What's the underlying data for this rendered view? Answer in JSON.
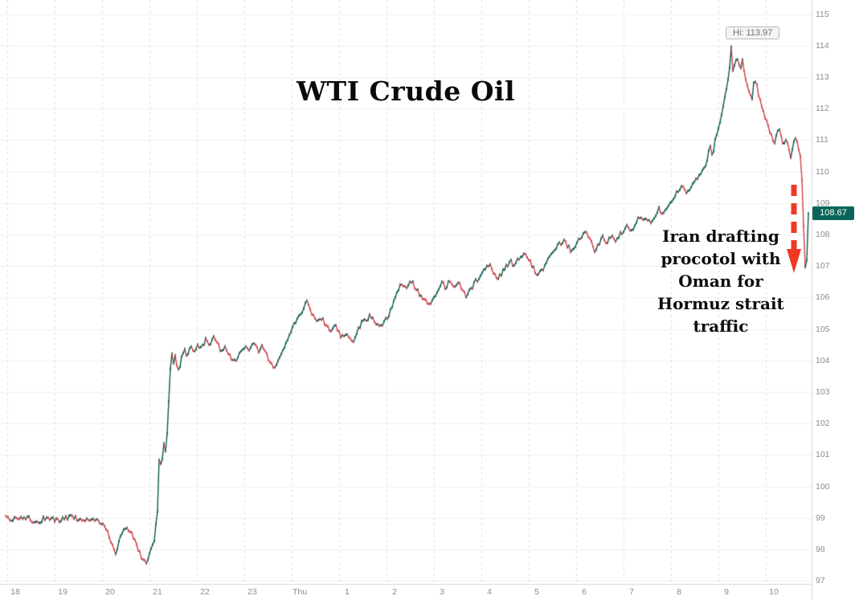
{
  "page": {
    "background": "#ffffff"
  },
  "chart": {
    "title": "WTI Crude Oil",
    "high_label": "Hi: 113.97",
    "last_price": "108.67"
  },
  "annotation": {
    "text": "Iran drafting\nprocotol with\nOman for\nHormuz strait\ntraffic",
    "arrow_color": "#ee3a25"
  },
  "colors": {
    "up": "#0d5c49",
    "down": "#d1404a",
    "grid_h": "#efefef",
    "grid_v": "#dedede",
    "axis_line": "#d9d9d9",
    "axis_text": "#8c8c8c",
    "badge_bg": "#0a6459",
    "badge_text": "#ffffff",
    "hi_bg": "#f3f3f3",
    "hi_border": "#b9b9b9",
    "hi_text": "#6f6f6f"
  },
  "chart_data": {
    "type": "candlestick",
    "title": "WTI Crude Oil",
    "x_tick_labels": [
      "18",
      "19",
      "20",
      "21",
      "22",
      "23",
      "Thu",
      "1",
      "2",
      "3",
      "4",
      "5",
      "6",
      "7",
      "8",
      "9",
      "10"
    ],
    "y_tick_values": [
      97,
      98,
      99,
      100,
      101,
      102,
      103,
      104,
      105,
      106,
      107,
      108,
      109,
      110,
      111,
      112,
      113,
      114,
      115
    ],
    "ylim": [
      96.9,
      115.45
    ],
    "high": 113.97,
    "low": 97.6,
    "last": 108.67,
    "legend": "WTI Crude Oil price, intraday; flat near 99, dip to ~97.6, rally from day 21 (~104) trending up to high 113.97 on day 9, sharp plunge to ~106.6 after day 10, last 108.67",
    "keypoints": [
      [
        6,
        99.0
      ],
      [
        18,
        98.95
      ],
      [
        30,
        99.05
      ],
      [
        45,
        98.85
      ],
      [
        58,
        99.02
      ],
      [
        72,
        98.9
      ],
      [
        88,
        99.05
      ],
      [
        102,
        98.88
      ],
      [
        114,
        99.0
      ],
      [
        126,
        98.82
      ],
      [
        133,
        98.6
      ],
      [
        139,
        98.2
      ],
      [
        144,
        97.9
      ],
      [
        150,
        98.45
      ],
      [
        157,
        98.72
      ],
      [
        164,
        98.55
      ],
      [
        171,
        98.05
      ],
      [
        177,
        97.72
      ],
      [
        183,
        97.6
      ],
      [
        188,
        98.05
      ],
      [
        192,
        98.25
      ],
      [
        196,
        99.2
      ],
      [
        198,
        100.9
      ],
      [
        201,
        100.6
      ],
      [
        204,
        101.3
      ],
      [
        207,
        101.0
      ],
      [
        209,
        102.2
      ],
      [
        211,
        103.1
      ],
      [
        213,
        104.5
      ],
      [
        215,
        103.85
      ],
      [
        218,
        104.15
      ],
      [
        221,
        103.6
      ],
      [
        225,
        103.95
      ],
      [
        229,
        104.4
      ],
      [
        233,
        104.1
      ],
      [
        237,
        104.5
      ],
      [
        241,
        104.2
      ],
      [
        246,
        104.55
      ],
      [
        251,
        104.35
      ],
      [
        256,
        104.7
      ],
      [
        261,
        104.5
      ],
      [
        266,
        104.75
      ],
      [
        271,
        104.5
      ],
      [
        276,
        104.3
      ],
      [
        281,
        104.45
      ],
      [
        286,
        104.15
      ],
      [
        291,
        103.95
      ],
      [
        296,
        104.1
      ],
      [
        301,
        104.3
      ],
      [
        306,
        104.5
      ],
      [
        311,
        104.35
      ],
      [
        316,
        104.5
      ],
      [
        321,
        104.3
      ],
      [
        326,
        104.45
      ],
      [
        331,
        104.2
      ],
      [
        336,
        103.92
      ],
      [
        341,
        103.8
      ],
      [
        346,
        104.0
      ],
      [
        351,
        104.3
      ],
      [
        356,
        104.55
      ],
      [
        361,
        104.8
      ],
      [
        366,
        105.1
      ],
      [
        371,
        105.3
      ],
      [
        376,
        105.55
      ],
      [
        380,
        105.8
      ],
      [
        383,
        105.95
      ],
      [
        386,
        105.6
      ],
      [
        391,
        105.45
      ],
      [
        396,
        105.2
      ],
      [
        401,
        105.35
      ],
      [
        406,
        105.1
      ],
      [
        411,
        104.95
      ],
      [
        416,
        105.15
      ],
      [
        421,
        104.9
      ],
      [
        426,
        104.75
      ],
      [
        431,
        104.85
      ],
      [
        436,
        104.68
      ],
      [
        440,
        104.6
      ],
      [
        444,
        104.85
      ],
      [
        448,
        105.1
      ],
      [
        452,
        105.35
      ],
      [
        456,
        105.2
      ],
      [
        460,
        105.45
      ],
      [
        465,
        105.3
      ],
      [
        470,
        105.12
      ],
      [
        475,
        105.05
      ],
      [
        480,
        105.3
      ],
      [
        485,
        105.5
      ],
      [
        490,
        105.9
      ],
      [
        495,
        106.2
      ],
      [
        500,
        106.45
      ],
      [
        505,
        106.3
      ],
      [
        510,
        106.55
      ],
      [
        515,
        106.4
      ],
      [
        520,
        106.18
      ],
      [
        525,
        106.0
      ],
      [
        530,
        105.85
      ],
      [
        535,
        105.75
      ],
      [
        540,
        105.95
      ],
      [
        545,
        106.2
      ],
      [
        550,
        106.45
      ],
      [
        555,
        106.3
      ],
      [
        560,
        106.55
      ],
      [
        565,
        106.38
      ],
      [
        570,
        106.5
      ],
      [
        575,
        106.22
      ],
      [
        580,
        106.05
      ],
      [
        585,
        106.2
      ],
      [
        590,
        106.45
      ],
      [
        595,
        106.6
      ],
      [
        600,
        106.8
      ],
      [
        605,
        106.95
      ],
      [
        610,
        107.0
      ],
      [
        615,
        106.75
      ],
      [
        620,
        106.6
      ],
      [
        625,
        106.82
      ],
      [
        630,
        107.0
      ],
      [
        635,
        107.15
      ],
      [
        640,
        107.0
      ],
      [
        645,
        107.2
      ],
      [
        650,
        107.32
      ],
      [
        655,
        107.4
      ],
      [
        660,
        107.1
      ],
      [
        665,
        106.85
      ],
      [
        670,
        106.7
      ],
      [
        675,
        106.9
      ],
      [
        680,
        107.1
      ],
      [
        685,
        107.3
      ],
      [
        690,
        107.5
      ],
      [
        695,
        107.65
      ],
      [
        700,
        107.8
      ],
      [
        705,
        107.7
      ],
      [
        710,
        107.5
      ],
      [
        715,
        107.65
      ],
      [
        720,
        107.82
      ],
      [
        725,
        107.95
      ],
      [
        730,
        108.05
      ],
      [
        735,
        107.85
      ],
      [
        740,
        107.5
      ],
      [
        745,
        107.7
      ],
      [
        750,
        107.9
      ],
      [
        755,
        107.75
      ],
      [
        760,
        107.95
      ],
      [
        765,
        107.8
      ],
      [
        770,
        107.95
      ],
      [
        775,
        108.1
      ],
      [
        780,
        108.25
      ],
      [
        785,
        108.05
      ],
      [
        790,
        108.3
      ],
      [
        795,
        108.55
      ],
      [
        800,
        108.4
      ],
      [
        805,
        108.55
      ],
      [
        810,
        108.35
      ],
      [
        815,
        108.6
      ],
      [
        820,
        108.8
      ],
      [
        825,
        108.65
      ],
      [
        830,
        108.85
      ],
      [
        835,
        109.05
      ],
      [
        840,
        109.25
      ],
      [
        845,
        109.4
      ],
      [
        850,
        109.5
      ],
      [
        855,
        109.35
      ],
      [
        860,
        109.55
      ],
      [
        865,
        109.7
      ],
      [
        870,
        109.85
      ],
      [
        875,
        110.0
      ],
      [
        878,
        110.2
      ],
      [
        881,
        110.55
      ],
      [
        884,
        110.8
      ],
      [
        887,
        110.5
      ],
      [
        890,
        111.0
      ],
      [
        893,
        111.3
      ],
      [
        896,
        111.6
      ],
      [
        899,
        112.0
      ],
      [
        902,
        112.35
      ],
      [
        905,
        112.8
      ],
      [
        908,
        113.3
      ],
      [
        910,
        113.97
      ],
      [
        912,
        113.15
      ],
      [
        915,
        113.45
      ],
      [
        918,
        113.6
      ],
      [
        921,
        113.25
      ],
      [
        924,
        113.5
      ],
      [
        927,
        113.1
      ],
      [
        930,
        112.8
      ],
      [
        933,
        112.5
      ],
      [
        936,
        112.25
      ],
      [
        939,
        113.0
      ],
      [
        942,
        112.7
      ],
      [
        945,
        112.35
      ],
      [
        948,
        112.1
      ],
      [
        951,
        111.85
      ],
      [
        954,
        111.6
      ],
      [
        957,
        111.3
      ],
      [
        960,
        111.1
      ],
      [
        963,
        110.85
      ],
      [
        966,
        111.2
      ],
      [
        969,
        111.4
      ],
      [
        972,
        111.1
      ],
      [
        975,
        110.9
      ],
      [
        978,
        111.05
      ],
      [
        981,
        110.75
      ],
      [
        984,
        110.5
      ],
      [
        987,
        110.9
      ],
      [
        990,
        111.05
      ],
      [
        993,
        110.8
      ],
      [
        996,
        110.55
      ],
      [
        999,
        109.2
      ],
      [
        1001,
        107.4
      ],
      [
        1003,
        106.62
      ],
      [
        1005,
        107.9
      ],
      [
        1007,
        108.67
      ]
    ]
  }
}
